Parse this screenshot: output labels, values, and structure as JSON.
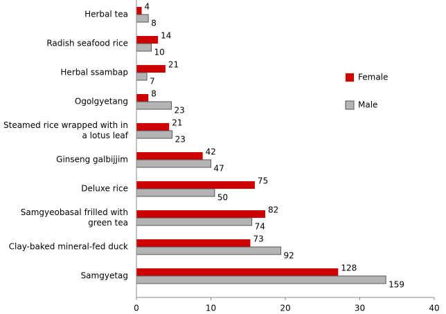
{
  "chart_data": {
    "type": "bar",
    "orientation": "horizontal",
    "categories": [
      "Herbal tea",
      "Radish seafood rice",
      "Herbal ssambap",
      "Ogolgyetang",
      "Steamed rice wrapped with in a lotus leaf",
      "Ginseng galbijjim",
      "Deluxe rice",
      "Samgyeobasal frilled with green tea",
      "Clay-baked mineral-fed duck",
      "Samgyetag"
    ],
    "series": [
      {
        "name": "Female",
        "color": "#cc0000",
        "values": [
          0.7,
          2.9,
          3.9,
          1.6,
          4.4,
          8.9,
          15.9,
          17.3,
          15.3,
          27.1
        ],
        "data_labels": [
          "4",
          "14",
          "21",
          "8",
          "21",
          "42",
          "75",
          "82",
          "73",
          "128"
        ]
      },
      {
        "name": "Male",
        "color": "#b4b4b4",
        "values": [
          1.6,
          2.0,
          1.4,
          4.7,
          4.8,
          10.0,
          10.5,
          15.5,
          19.4,
          33.5
        ],
        "data_labels": [
          "8",
          "10",
          "7",
          "23",
          "23",
          "47",
          "50",
          "74",
          "92",
          "159"
        ]
      }
    ],
    "xlim": [
      0,
      40
    ],
    "xticks": [
      0,
      10,
      20,
      30,
      40
    ],
    "legend": "right"
  }
}
